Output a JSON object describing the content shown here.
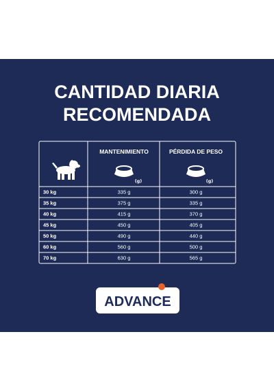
{
  "header": {
    "title_lines": [
      "CANTIDAD DIARIA",
      "RECOMENDADA"
    ]
  },
  "table": {
    "columns": [
      "MANTENIMIENTO",
      "PÉRDIDA DE PESO"
    ],
    "unit": "(g)",
    "rows": [
      [
        "30 kg",
        "335 g",
        "300 g"
      ],
      [
        "35 kg",
        "375 g",
        "335 g"
      ],
      [
        "40 kg",
        "415 g",
        "370 g"
      ],
      [
        "45 kg",
        "450 g",
        "405 g"
      ],
      [
        "50 kg",
        "490 g",
        "440 g"
      ],
      [
        "60 kg",
        "560 g",
        "500 g"
      ],
      [
        "70 kg",
        "630 g",
        "565 g"
      ]
    ]
  },
  "logo": {
    "text": "ADVANCE"
  }
}
